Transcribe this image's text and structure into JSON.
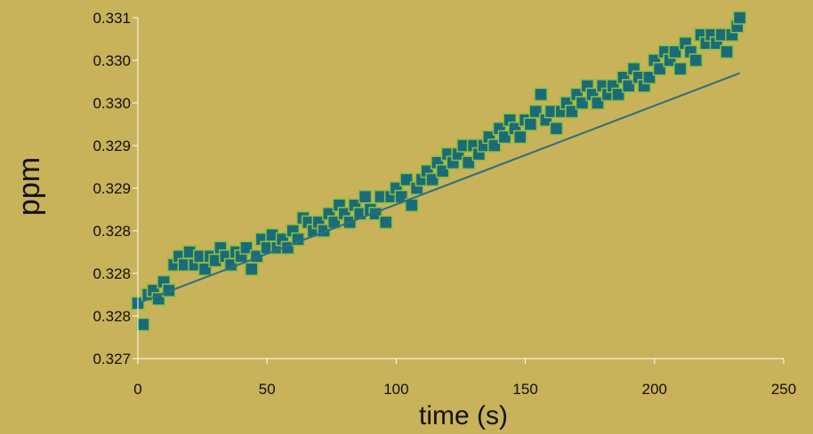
{
  "chart_data": {
    "type": "scatter",
    "xlabel": "time (s)",
    "ylabel": "ppm",
    "xlim": [
      0,
      250
    ],
    "ylim": [
      0.327,
      0.331
    ],
    "x_ticks": [
      "0",
      "50",
      "100",
      "150",
      "200",
      "250"
    ],
    "y_ticks": [
      "0.327",
      "0.328",
      "0.328",
      "0.328",
      "0.329",
      "0.329",
      "0.330",
      "0.330",
      "0.331"
    ],
    "grid": false,
    "legend": "none",
    "trendline": {
      "type": "linear",
      "from": [
        0,
        0.32765
      ],
      "to": [
        233,
        0.33035
      ]
    },
    "marker": {
      "shape": "square",
      "fill": "#1a6b7a",
      "edge": "#8fbf3a"
    },
    "colors": {
      "background": "#c8b25a",
      "axis": "#ffffff",
      "trendline": "#2b6f80"
    },
    "series": [
      {
        "x": [
          0,
          2,
          4,
          6,
          8,
          10,
          12,
          14,
          16,
          18,
          20,
          22,
          24,
          26,
          28,
          30,
          32,
          34,
          36,
          38,
          40,
          42,
          44,
          46,
          48,
          50,
          52,
          54,
          56,
          58,
          60,
          62,
          64,
          66,
          68,
          70,
          72,
          74,
          76,
          78,
          80,
          82,
          84,
          86,
          88,
          90,
          92,
          94,
          96,
          98,
          100,
          102,
          104,
          106,
          108,
          110,
          112,
          114,
          116,
          118,
          120,
          122,
          124,
          126,
          128,
          130,
          132,
          134,
          136,
          138,
          140,
          142,
          144,
          146,
          148,
          150,
          152,
          154,
          156,
          158,
          160,
          162,
          164,
          166,
          168,
          170,
          172,
          174,
          176,
          178,
          180,
          182,
          184,
          186,
          188,
          190,
          192,
          194,
          196,
          198,
          200,
          202,
          204,
          206,
          208,
          210,
          212,
          214,
          216,
          218,
          220,
          222,
          224,
          226,
          228,
          230,
          232,
          233
        ],
        "y": [
          0.32765,
          0.3274,
          0.32775,
          0.3278,
          0.3277,
          0.3279,
          0.3278,
          0.3281,
          0.3282,
          0.3281,
          0.32825,
          0.3281,
          0.3282,
          0.32805,
          0.3282,
          0.32815,
          0.3283,
          0.3282,
          0.3281,
          0.32825,
          0.3282,
          0.3283,
          0.32805,
          0.3282,
          0.3284,
          0.3283,
          0.32845,
          0.3283,
          0.3284,
          0.3283,
          0.3285,
          0.3284,
          0.32865,
          0.3286,
          0.3285,
          0.3286,
          0.3285,
          0.3287,
          0.3286,
          0.3288,
          0.3287,
          0.3286,
          0.3288,
          0.3287,
          0.3289,
          0.32875,
          0.3287,
          0.3289,
          0.3286,
          0.3289,
          0.329,
          0.3289,
          0.3291,
          0.3288,
          0.329,
          0.3291,
          0.3292,
          0.3291,
          0.3293,
          0.3292,
          0.3294,
          0.3293,
          0.3294,
          0.3295,
          0.3293,
          0.3295,
          0.3294,
          0.3295,
          0.3296,
          0.3295,
          0.3297,
          0.3296,
          0.3298,
          0.3297,
          0.3296,
          0.3298,
          0.32975,
          0.3299,
          0.3301,
          0.3298,
          0.3299,
          0.3297,
          0.3299,
          0.33,
          0.3299,
          0.3301,
          0.33,
          0.3302,
          0.3301,
          0.33,
          0.3302,
          0.3301,
          0.3302,
          0.3301,
          0.3303,
          0.3302,
          0.3304,
          0.3303,
          0.3302,
          0.3303,
          0.3305,
          0.3304,
          0.3306,
          0.3305,
          0.3306,
          0.3304,
          0.3307,
          0.3306,
          0.3305,
          0.3308,
          0.3307,
          0.3308,
          0.3307,
          0.3308,
          0.3306,
          0.3308,
          0.3309,
          0.331
        ]
      }
    ]
  }
}
